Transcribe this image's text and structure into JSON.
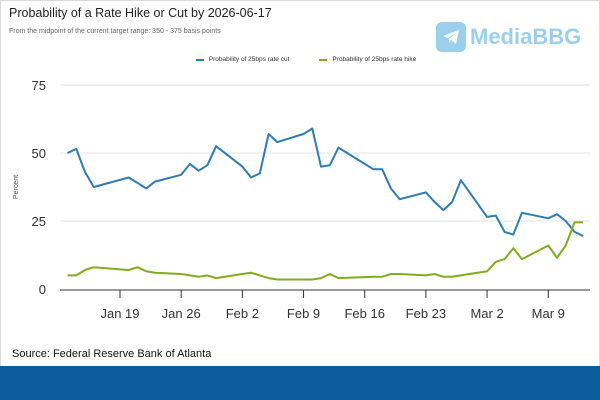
{
  "header": {
    "title": "Probability of a Rate Hike or Cut by 2026-06-17",
    "subtitle": "From the midpoint of the current target range: 350 - 375 basis points",
    "watermark": "MediaBBG"
  },
  "source": "Source: Federal Reserve Bank of Atlanta",
  "colors": {
    "cut": "#2f7bb6",
    "hike": "#80ad1f",
    "footer": "#0b5c9a"
  },
  "chart_data": {
    "type": "line",
    "title": "Probability of a Rate Hike or Cut by 2026-06-17",
    "xlabel": "",
    "ylabel": "Percent",
    "ylim": [
      0,
      75
    ],
    "yticks": [
      0,
      25,
      50,
      75
    ],
    "xticks": [
      {
        "date": "2026-01-19",
        "label": "Jan 19"
      },
      {
        "date": "2026-01-26",
        "label": "Jan 26"
      },
      {
        "date": "2026-02-02",
        "label": "Feb 2"
      },
      {
        "date": "2026-02-09",
        "label": "Feb 9"
      },
      {
        "date": "2026-02-16",
        "label": "Feb 16"
      },
      {
        "date": "2026-02-23",
        "label": "Feb 23"
      },
      {
        "date": "2026-03-02",
        "label": "Mar 2"
      },
      {
        "date": "2026-03-09",
        "label": "Mar 9"
      }
    ],
    "legend_position": "top-center",
    "grid": true,
    "x": [
      "2026-01-13",
      "2026-01-14",
      "2026-01-15",
      "2026-01-16",
      "2026-01-20",
      "2026-01-21",
      "2026-01-22",
      "2026-01-23",
      "2026-01-26",
      "2026-01-27",
      "2026-01-28",
      "2026-01-29",
      "2026-01-30",
      "2026-02-02",
      "2026-02-03",
      "2026-02-04",
      "2026-02-05",
      "2026-02-06",
      "2026-02-09",
      "2026-02-10",
      "2026-02-11",
      "2026-02-12",
      "2026-02-13",
      "2026-02-17",
      "2026-02-18",
      "2026-02-19",
      "2026-02-20",
      "2026-02-23",
      "2026-02-24",
      "2026-02-25",
      "2026-02-26",
      "2026-02-27",
      "2026-03-02",
      "2026-03-03",
      "2026-03-04",
      "2026-03-05",
      "2026-03-06",
      "2026-03-09",
      "2026-03-10",
      "2026-03-11",
      "2026-03-12",
      "2026-03-13"
    ],
    "series": [
      {
        "name": "Probability of 25bps rate cut",
        "key": "cut",
        "values": [
          50,
          51.5,
          43,
          37.5,
          41,
          39,
          37,
          39.5,
          42,
          46,
          43.5,
          45.5,
          52.5,
          45,
          41,
          42.5,
          57,
          54,
          57,
          59,
          45,
          45.5,
          52,
          44,
          44,
          37,
          33,
          35.5,
          32,
          29,
          32,
          40,
          26.5,
          27,
          21,
          20,
          28,
          26,
          27.5,
          25,
          21,
          19.5
        ]
      },
      {
        "name": "Probability of 25bps rate hike",
        "key": "hike",
        "values": [
          5,
          5,
          7,
          8,
          7,
          8,
          6.5,
          6,
          5.5,
          5,
          4.5,
          5,
          4,
          5.5,
          6,
          5,
          4,
          3.5,
          3.5,
          3.5,
          4,
          5.5,
          4,
          4.5,
          4.5,
          5.5,
          5.5,
          5,
          5.5,
          4.5,
          4.5,
          5,
          6.5,
          10,
          11,
          15,
          11,
          16,
          11.5,
          16,
          24.5,
          24.5
        ]
      }
    ]
  }
}
